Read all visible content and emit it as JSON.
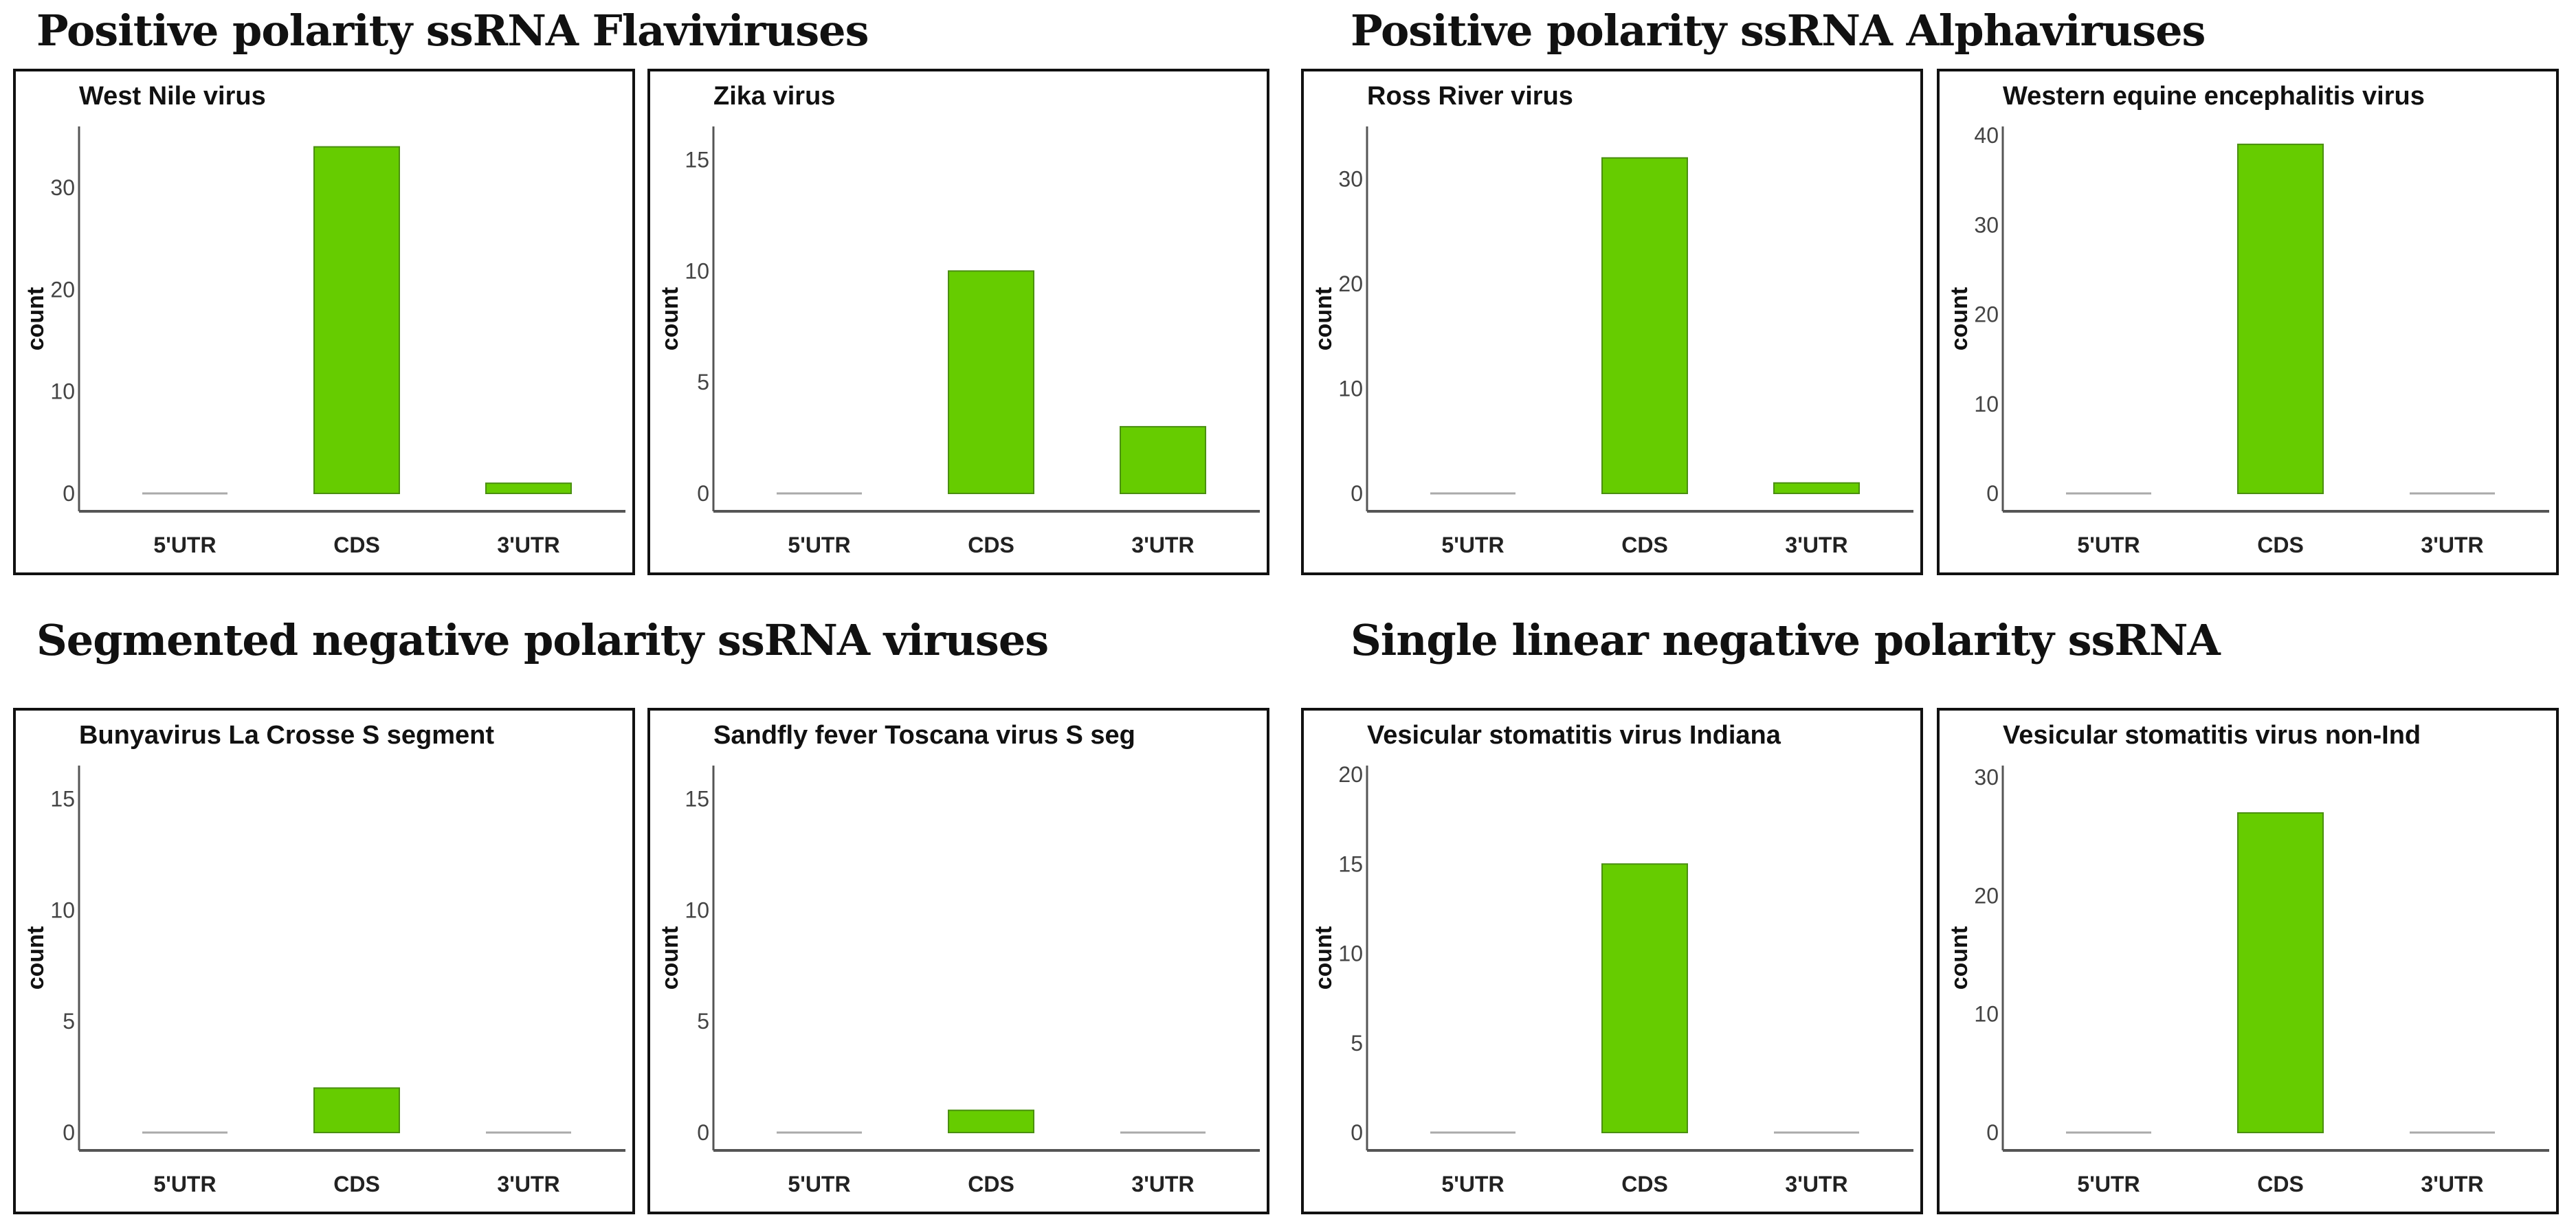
{
  "sections": [
    {
      "title": "Positive polarity ssRNA Flaviviruses"
    },
    {
      "title": "Positive polarity ssRNA Alphaviruses"
    },
    {
      "title": "Segmented negative polarity ssRNA viruses"
    },
    {
      "title": "Single linear negative polarity ssRNA"
    }
  ],
  "chart_data": [
    {
      "type": "bar",
      "title": "West Nile virus",
      "categories": [
        "5'UTR",
        "CDS",
        "3'UTR"
      ],
      "values": [
        0,
        34,
        1
      ],
      "ylabel": "count",
      "yticks": [
        0,
        10,
        20,
        30
      ],
      "ylim": [
        0,
        36
      ],
      "color": "#66cc00"
    },
    {
      "type": "bar",
      "title": "Zika virus",
      "categories": [
        "5'UTR",
        "CDS",
        "3'UTR"
      ],
      "values": [
        0,
        10,
        3
      ],
      "ylabel": "count",
      "yticks": [
        0,
        5,
        10,
        15
      ],
      "ylim": [
        0,
        16.5
      ],
      "color": "#66cc00"
    },
    {
      "type": "bar",
      "title": "Ross River virus",
      "categories": [
        "5'UTR",
        "CDS",
        "3'UTR"
      ],
      "values": [
        0,
        32,
        1
      ],
      "ylabel": "count",
      "yticks": [
        0,
        10,
        20,
        30
      ],
      "ylim": [
        0,
        35
      ],
      "color": "#66cc00"
    },
    {
      "type": "bar",
      "title": "Western equine encephalitis virus",
      "categories": [
        "5'UTR",
        "CDS",
        "3'UTR"
      ],
      "values": [
        0,
        39,
        0
      ],
      "ylabel": "count",
      "yticks": [
        0,
        10,
        20,
        30,
        40
      ],
      "ylim": [
        0,
        41
      ],
      "color": "#66cc00"
    },
    {
      "type": "bar",
      "title": "Bunyavirus La Crosse S segment",
      "categories": [
        "5'UTR",
        "CDS",
        "3'UTR"
      ],
      "values": [
        0,
        2,
        0
      ],
      "ylabel": "count",
      "yticks": [
        0,
        5,
        10,
        15
      ],
      "ylim": [
        0,
        16.5
      ],
      "color": "#66cc00"
    },
    {
      "type": "bar",
      "title": "Sandfly fever Toscana virus S seg",
      "categories": [
        "5'UTR",
        "CDS",
        "3'UTR"
      ],
      "values": [
        0,
        1,
        0
      ],
      "ylabel": "count",
      "yticks": [
        0,
        5,
        10,
        15
      ],
      "ylim": [
        0,
        16.5
      ],
      "color": "#66cc00"
    },
    {
      "type": "bar",
      "title": "Vesicular stomatitis virus Indiana",
      "categories": [
        "5'UTR",
        "CDS",
        "3'UTR"
      ],
      "values": [
        0,
        15,
        0
      ],
      "ylabel": "count",
      "yticks": [
        0,
        5,
        10,
        15,
        20
      ],
      "ylim": [
        0,
        20.5
      ],
      "color": "#66cc00"
    },
    {
      "type": "bar",
      "title": "Vesicular stomatitis virus non-Ind",
      "categories": [
        "5'UTR",
        "CDS",
        "3'UTR"
      ],
      "values": [
        0,
        27,
        0
      ],
      "ylabel": "count",
      "yticks": [
        0,
        10,
        20,
        30
      ],
      "ylim": [
        0,
        31
      ],
      "color": "#66cc00"
    }
  ]
}
